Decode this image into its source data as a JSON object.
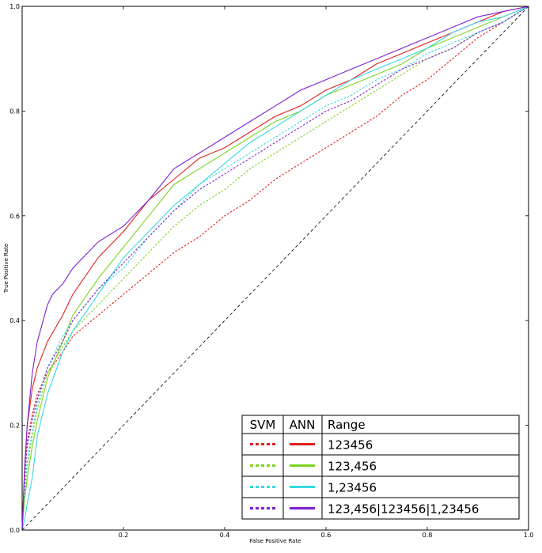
{
  "chart_data": {
    "type": "line",
    "title": "",
    "xlabel": "False Positive Rate",
    "ylabel": "True Positive Rate",
    "xlim": [
      0,
      1
    ],
    "ylim": [
      0,
      1
    ],
    "xticks": [
      0.0,
      0.2,
      0.4,
      0.6,
      0.8,
      1.0
    ],
    "xtick_labels": [
      "",
      "0.2",
      "0.4",
      "0.6",
      "0.8",
      "1.0"
    ],
    "yticks": [
      0.0,
      0.2,
      0.4,
      0.6,
      0.8,
      1.0
    ],
    "ytick_labels": [
      "0.0",
      "0.2",
      "0.4",
      "0.6",
      "0.8",
      "1.0"
    ],
    "grid": false,
    "legend_position": "bottom-right",
    "legend": {
      "headers": [
        "SVM",
        "ANN",
        "Range"
      ],
      "rows": [
        "123456",
        "123,456",
        "1,23456",
        "123,456|123456|1,23456"
      ]
    },
    "diagonal": {
      "x": [
        0,
        1
      ],
      "y": [
        0,
        1
      ],
      "style": "dashed",
      "color": "#000000"
    },
    "series": [
      {
        "model": "SVM",
        "range": "123456",
        "color": "#e02020",
        "style": "dotted",
        "x": [
          0,
          0.005,
          0.01,
          0.02,
          0.03,
          0.05,
          0.08,
          0.1,
          0.15,
          0.2,
          0.25,
          0.3,
          0.35,
          0.4,
          0.45,
          0.5,
          0.55,
          0.6,
          0.65,
          0.7,
          0.75,
          0.8,
          0.85,
          0.9,
          0.95,
          1.0
        ],
        "y": [
          0,
          0.1,
          0.17,
          0.22,
          0.26,
          0.3,
          0.34,
          0.37,
          0.41,
          0.45,
          0.49,
          0.53,
          0.56,
          0.6,
          0.63,
          0.67,
          0.7,
          0.73,
          0.76,
          0.79,
          0.83,
          0.86,
          0.9,
          0.94,
          0.97,
          1.0
        ]
      },
      {
        "model": "ANN",
        "range": "123456",
        "color": "#e02020",
        "style": "solid",
        "x": [
          0,
          0.005,
          0.01,
          0.02,
          0.03,
          0.05,
          0.08,
          0.1,
          0.15,
          0.2,
          0.25,
          0.3,
          0.35,
          0.4,
          0.45,
          0.5,
          0.55,
          0.6,
          0.65,
          0.7,
          0.75,
          0.8,
          0.85,
          0.9,
          0.95,
          1.0
        ],
        "y": [
          0,
          0.12,
          0.2,
          0.27,
          0.31,
          0.36,
          0.41,
          0.45,
          0.52,
          0.57,
          0.63,
          0.67,
          0.71,
          0.73,
          0.76,
          0.79,
          0.81,
          0.84,
          0.86,
          0.89,
          0.91,
          0.93,
          0.95,
          0.97,
          0.99,
          1.0
        ]
      },
      {
        "model": "SVM",
        "range": "123,456",
        "color": "#7ed321",
        "style": "dotted",
        "x": [
          0,
          0.005,
          0.01,
          0.02,
          0.03,
          0.05,
          0.08,
          0.1,
          0.15,
          0.2,
          0.25,
          0.3,
          0.35,
          0.4,
          0.45,
          0.5,
          0.55,
          0.6,
          0.65,
          0.7,
          0.75,
          0.8,
          0.85,
          0.9,
          0.95,
          1.0
        ],
        "y": [
          0,
          0.07,
          0.12,
          0.18,
          0.23,
          0.3,
          0.35,
          0.38,
          0.43,
          0.48,
          0.53,
          0.58,
          0.62,
          0.65,
          0.69,
          0.72,
          0.75,
          0.78,
          0.81,
          0.84,
          0.87,
          0.9,
          0.92,
          0.95,
          0.97,
          1.0
        ]
      },
      {
        "model": "ANN",
        "range": "123,456",
        "color": "#7ed321",
        "style": "solid",
        "x": [
          0,
          0.005,
          0.01,
          0.02,
          0.03,
          0.05,
          0.08,
          0.1,
          0.15,
          0.2,
          0.25,
          0.3,
          0.35,
          0.4,
          0.45,
          0.5,
          0.55,
          0.6,
          0.65,
          0.7,
          0.75,
          0.8,
          0.85,
          0.9,
          0.95,
          1.0
        ],
        "y": [
          0,
          0.06,
          0.1,
          0.16,
          0.21,
          0.29,
          0.36,
          0.41,
          0.48,
          0.54,
          0.6,
          0.66,
          0.69,
          0.72,
          0.75,
          0.78,
          0.8,
          0.83,
          0.85,
          0.87,
          0.89,
          0.92,
          0.94,
          0.96,
          0.98,
          1.0
        ]
      },
      {
        "model": "SVM",
        "range": "1,23456",
        "color": "#38d8e0",
        "style": "dotted",
        "x": [
          0,
          0.005,
          0.01,
          0.02,
          0.03,
          0.05,
          0.08,
          0.1,
          0.15,
          0.2,
          0.25,
          0.3,
          0.35,
          0.4,
          0.45,
          0.5,
          0.55,
          0.6,
          0.65,
          0.7,
          0.75,
          0.8,
          0.85,
          0.9,
          0.95,
          1.0
        ],
        "y": [
          0,
          0.08,
          0.13,
          0.19,
          0.24,
          0.31,
          0.37,
          0.4,
          0.46,
          0.5,
          0.56,
          0.61,
          0.66,
          0.69,
          0.72,
          0.75,
          0.78,
          0.81,
          0.83,
          0.86,
          0.88,
          0.91,
          0.93,
          0.95,
          0.97,
          1.0
        ]
      },
      {
        "model": "ANN",
        "range": "1,23456",
        "color": "#38d8e0",
        "style": "solid",
        "x": [
          0,
          0.005,
          0.01,
          0.02,
          0.03,
          0.05,
          0.08,
          0.1,
          0.15,
          0.2,
          0.25,
          0.3,
          0.35,
          0.4,
          0.45,
          0.5,
          0.55,
          0.6,
          0.65,
          0.7,
          0.75,
          0.8,
          0.85,
          0.9,
          0.95,
          1.0
        ],
        "y": [
          0,
          0.02,
          0.05,
          0.1,
          0.18,
          0.26,
          0.34,
          0.38,
          0.45,
          0.52,
          0.57,
          0.62,
          0.66,
          0.7,
          0.74,
          0.77,
          0.8,
          0.83,
          0.86,
          0.88,
          0.9,
          0.92,
          0.95,
          0.97,
          0.98,
          1.0
        ]
      },
      {
        "model": "SVM",
        "range": "123,456|123456|1,23456",
        "color": "#7d1fd6",
        "style": "dotted",
        "x": [
          0,
          0.005,
          0.01,
          0.02,
          0.03,
          0.05,
          0.08,
          0.1,
          0.15,
          0.2,
          0.25,
          0.3,
          0.35,
          0.4,
          0.45,
          0.5,
          0.55,
          0.6,
          0.65,
          0.7,
          0.75,
          0.8,
          0.85,
          0.9,
          0.95,
          1.0
        ],
        "y": [
          0,
          0.1,
          0.16,
          0.21,
          0.25,
          0.31,
          0.36,
          0.4,
          0.46,
          0.51,
          0.56,
          0.61,
          0.65,
          0.68,
          0.71,
          0.74,
          0.77,
          0.8,
          0.82,
          0.85,
          0.88,
          0.9,
          0.92,
          0.95,
          0.97,
          1.0
        ]
      },
      {
        "model": "ANN",
        "range": "123,456|123456|1,23456",
        "color": "#7d1fd6",
        "style": "solid",
        "x": [
          0,
          0.005,
          0.01,
          0.02,
          0.03,
          0.05,
          0.06,
          0.08,
          0.1,
          0.15,
          0.2,
          0.25,
          0.3,
          0.35,
          0.4,
          0.45,
          0.5,
          0.55,
          0.6,
          0.65,
          0.7,
          0.75,
          0.8,
          0.85,
          0.9,
          0.95,
          1.0
        ],
        "y": [
          0,
          0.12,
          0.2,
          0.3,
          0.36,
          0.43,
          0.45,
          0.47,
          0.5,
          0.55,
          0.58,
          0.63,
          0.69,
          0.72,
          0.75,
          0.78,
          0.81,
          0.84,
          0.86,
          0.88,
          0.9,
          0.92,
          0.94,
          0.96,
          0.98,
          0.99,
          1.0
        ]
      }
    ]
  }
}
